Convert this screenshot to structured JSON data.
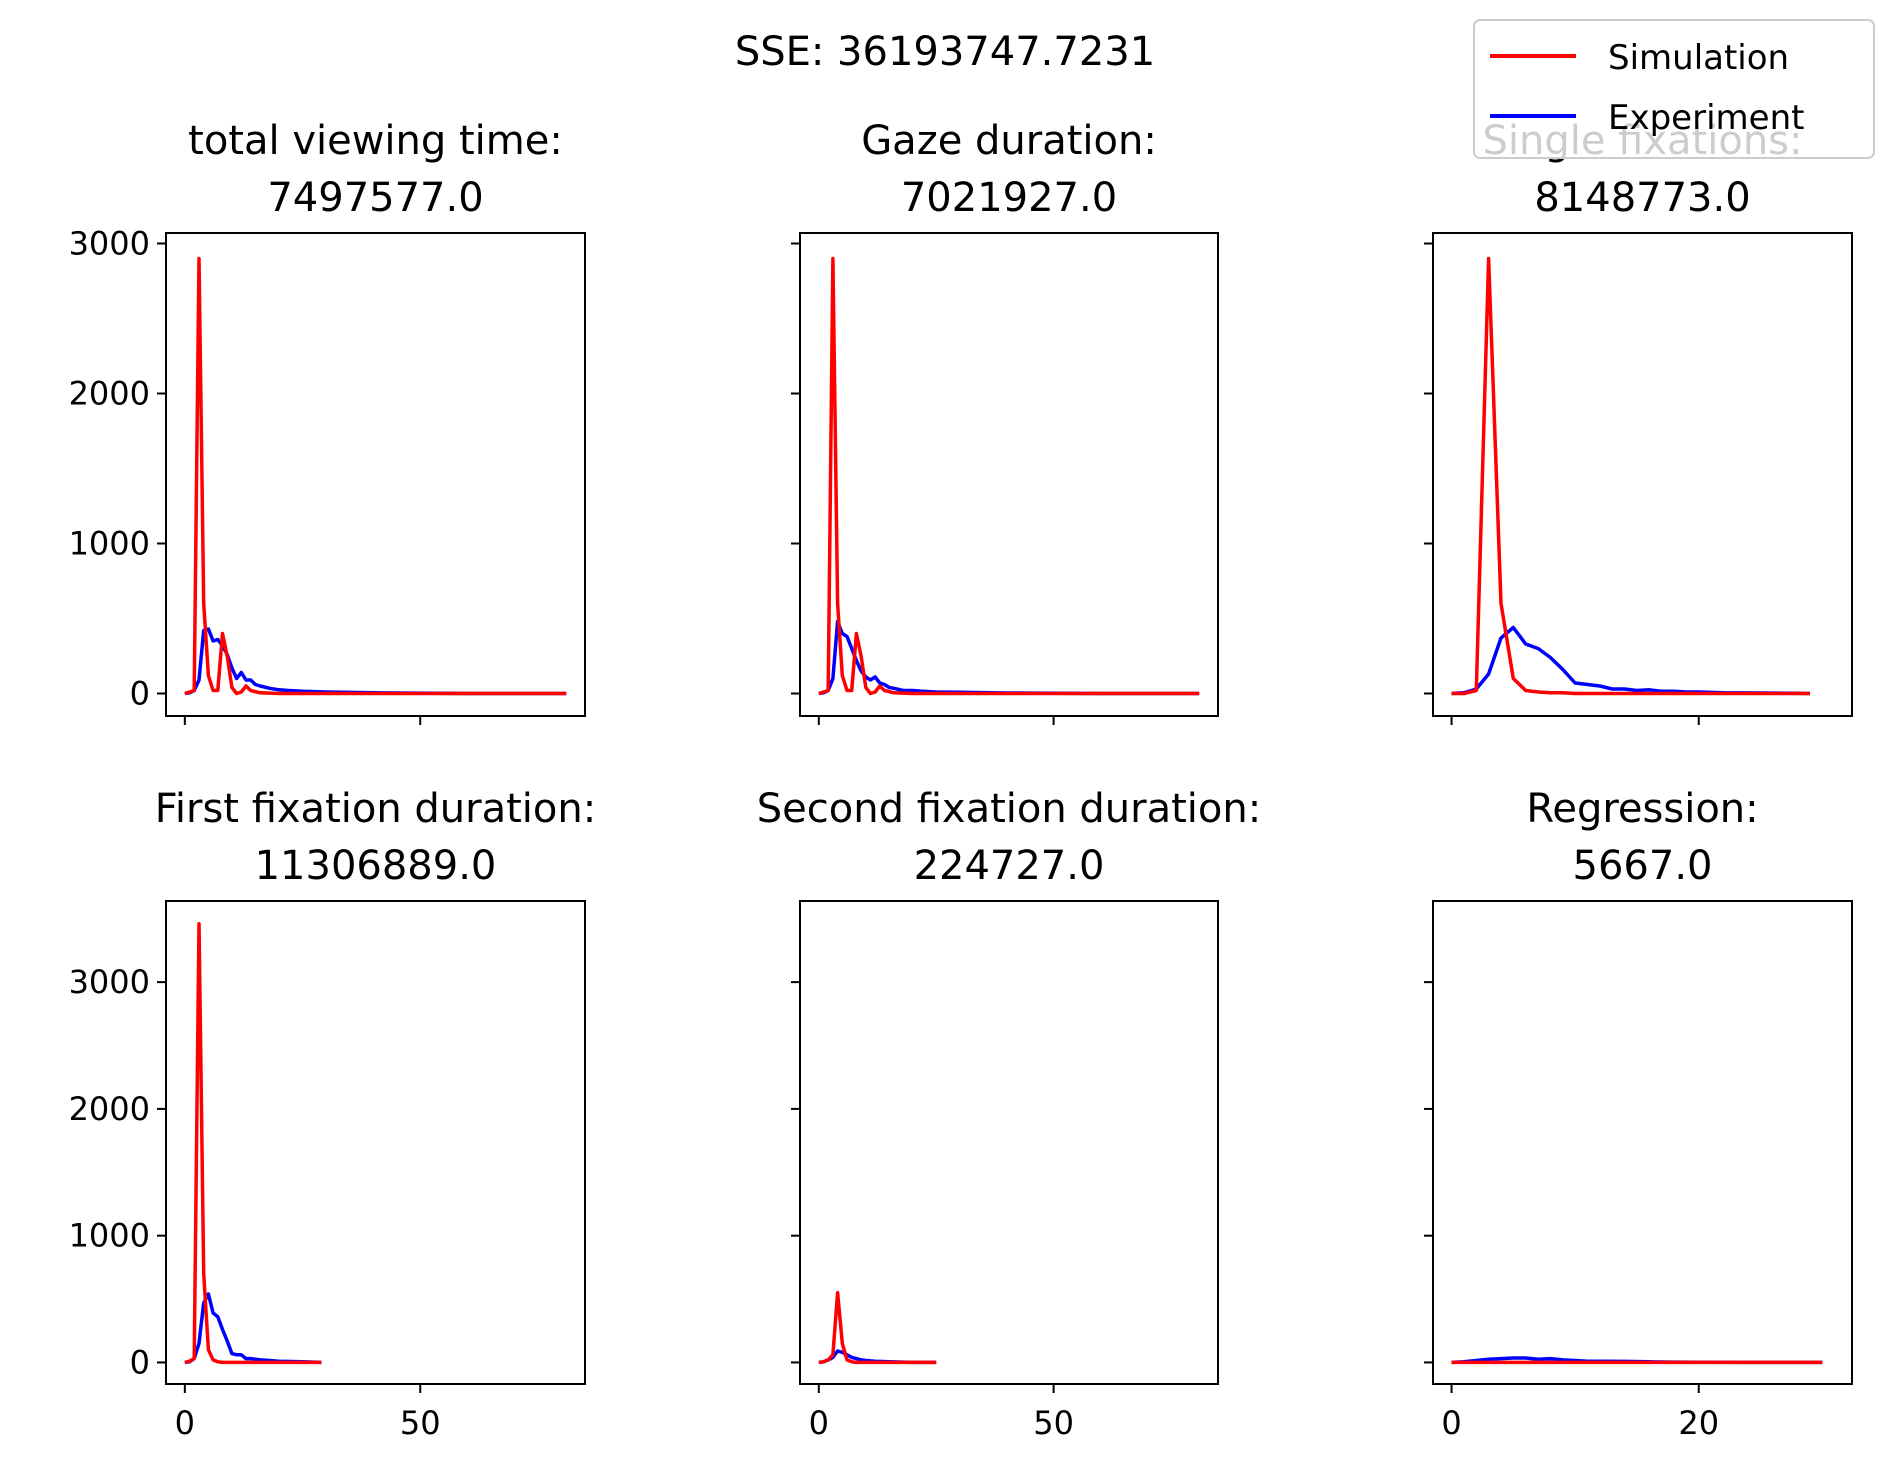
{
  "suptitle": "SSE: 36193747.7231",
  "legend": {
    "placement": "top-right",
    "entries": [
      {
        "label": "Simulation",
        "color": "#ff0000"
      },
      {
        "label": "Experiment",
        "color": "#0000ff"
      }
    ]
  },
  "colors": {
    "simulation": "#ff0000",
    "experiment": "#0000ff"
  },
  "chart_data": [
    {
      "type": "line",
      "title_line1": "total viewing time:",
      "title_line2": "7497577.0",
      "xlim": [
        -4,
        85
      ],
      "ylim": [
        -150,
        3070
      ],
      "xticks": [
        0,
        50
      ],
      "yticks": [
        0,
        1000,
        2000,
        3000
      ],
      "show_xticklabels": false,
      "show_yticklabels": true,
      "series": [
        {
          "name": "Simulation",
          "color": "#ff0000",
          "x": [
            0,
            1,
            2,
            3,
            4,
            5,
            6,
            7,
            8,
            9,
            10,
            11,
            12,
            13,
            14,
            16,
            20,
            30,
            50,
            81
          ],
          "y": [
            0,
            10,
            20,
            2900,
            600,
            120,
            20,
            20,
            400,
            250,
            40,
            0,
            10,
            50,
            20,
            5,
            0,
            0,
            0,
            0
          ]
        },
        {
          "name": "Experiment",
          "color": "#0000ff",
          "x": [
            0,
            1,
            2,
            3,
            4,
            5,
            6,
            7,
            8,
            9,
            10,
            11,
            12,
            13,
            14,
            15,
            16,
            18,
            20,
            22,
            25,
            30,
            40,
            60,
            81
          ],
          "y": [
            0,
            5,
            20,
            90,
            420,
            430,
            350,
            360,
            320,
            260,
            170,
            100,
            140,
            90,
            90,
            60,
            50,
            35,
            25,
            20,
            15,
            10,
            5,
            0,
            0
          ]
        }
      ]
    },
    {
      "type": "line",
      "title_line1": "Gaze duration:",
      "title_line2": "7021927.0",
      "xlim": [
        -4,
        85
      ],
      "ylim": [
        -150,
        3070
      ],
      "xticks": [
        0,
        50
      ],
      "yticks": [
        0,
        1000,
        2000,
        3000
      ],
      "show_xticklabels": false,
      "show_yticklabels": false,
      "series": [
        {
          "name": "Simulation",
          "color": "#ff0000",
          "x": [
            0,
            1,
            2,
            3,
            4,
            5,
            6,
            7,
            8,
            9,
            10,
            11,
            12,
            13,
            14,
            16,
            20,
            30,
            50,
            81
          ],
          "y": [
            0,
            10,
            20,
            2900,
            600,
            120,
            20,
            20,
            400,
            250,
            40,
            0,
            10,
            50,
            20,
            5,
            0,
            0,
            0,
            0
          ]
        },
        {
          "name": "Experiment",
          "color": "#0000ff",
          "x": [
            0,
            1,
            2,
            3,
            4,
            5,
            6,
            7,
            8,
            9,
            10,
            11,
            12,
            13,
            14,
            15,
            16,
            18,
            20,
            22,
            25,
            30,
            40,
            60,
            81
          ],
          "y": [
            0,
            5,
            20,
            100,
            480,
            400,
            380,
            300,
            220,
            150,
            110,
            90,
            110,
            70,
            60,
            40,
            35,
            20,
            20,
            15,
            10,
            8,
            3,
            0,
            0
          ]
        }
      ]
    },
    {
      "type": "line",
      "title_line1": "Single fixations:",
      "title_line2": "8148773.0",
      "xlim": [
        -1.5,
        32.4
      ],
      "ylim": [
        -150,
        3070
      ],
      "xticks": [
        0,
        20
      ],
      "yticks": [
        0,
        1000,
        2000,
        3000
      ],
      "show_xticklabels": false,
      "show_yticklabels": false,
      "series": [
        {
          "name": "Simulation",
          "color": "#ff0000",
          "x": [
            0,
            1,
            2,
            3,
            4,
            5,
            6,
            7,
            8,
            9,
            10,
            15,
            20,
            25,
            29
          ],
          "y": [
            0,
            0,
            20,
            2900,
            600,
            100,
            20,
            10,
            5,
            5,
            0,
            0,
            0,
            0,
            0
          ]
        },
        {
          "name": "Experiment",
          "color": "#0000ff",
          "x": [
            0,
            1,
            2,
            3,
            4,
            5,
            6,
            7,
            8,
            9,
            10,
            11,
            12,
            13,
            14,
            15,
            16,
            17,
            18,
            19,
            20,
            22,
            25,
            29
          ],
          "y": [
            0,
            5,
            30,
            130,
            370,
            440,
            330,
            300,
            240,
            160,
            70,
            60,
            50,
            30,
            30,
            20,
            25,
            15,
            15,
            10,
            10,
            5,
            3,
            0
          ]
        }
      ]
    },
    {
      "type": "line",
      "title_line1": "First fixation duration:",
      "title_line2": "11306889.0",
      "xlim": [
        -4,
        85
      ],
      "ylim": [
        -170,
        3640
      ],
      "xticks": [
        0,
        50
      ],
      "yticks": [
        0,
        1000,
        2000,
        3000
      ],
      "show_xticklabels": true,
      "show_yticklabels": true,
      "series": [
        {
          "name": "Simulation",
          "color": "#ff0000",
          "x": [
            0,
            1,
            2,
            3,
            4,
            5,
            6,
            7,
            8,
            10,
            15,
            20,
            29
          ],
          "y": [
            0,
            10,
            30,
            3460,
            700,
            100,
            20,
            5,
            0,
            0,
            0,
            0,
            0
          ]
        },
        {
          "name": "Experiment",
          "color": "#0000ff",
          "x": [
            0,
            1,
            2,
            3,
            4,
            5,
            6,
            7,
            8,
            9,
            10,
            11,
            12,
            13,
            14,
            16,
            18,
            20,
            25,
            29
          ],
          "y": [
            0,
            5,
            30,
            150,
            470,
            540,
            390,
            360,
            260,
            170,
            70,
            60,
            60,
            30,
            30,
            20,
            15,
            10,
            5,
            0
          ]
        }
      ]
    },
    {
      "type": "line",
      "title_line1": "Second fixation duration:",
      "title_line2": "224727.0",
      "xlim": [
        -4,
        85
      ],
      "ylim": [
        -170,
        3640
      ],
      "xticks": [
        0,
        50
      ],
      "yticks": [
        0,
        1000,
        2000,
        3000
      ],
      "show_xticklabels": true,
      "show_yticklabels": false,
      "series": [
        {
          "name": "Simulation",
          "color": "#ff0000",
          "x": [
            0,
            1,
            2,
            3,
            4,
            5,
            6,
            7,
            8,
            10,
            15,
            20,
            25
          ],
          "y": [
            0,
            5,
            20,
            60,
            550,
            150,
            20,
            5,
            0,
            0,
            0,
            0,
            0
          ]
        },
        {
          "name": "Experiment",
          "color": "#0000ff",
          "x": [
            0,
            1,
            2,
            3,
            4,
            5,
            6,
            7,
            8,
            9,
            10,
            12,
            15,
            20,
            25
          ],
          "y": [
            0,
            5,
            20,
            40,
            90,
            80,
            60,
            40,
            30,
            20,
            15,
            10,
            5,
            0,
            0
          ]
        }
      ]
    },
    {
      "type": "line",
      "title_line1": "Regression:",
      "title_line2": "5667.0",
      "xlim": [
        -1.5,
        32.4
      ],
      "ylim": [
        -170,
        3640
      ],
      "xticks": [
        0,
        20
      ],
      "yticks": [
        0,
        1000,
        2000,
        3000
      ],
      "show_xticklabels": true,
      "show_yticklabels": false,
      "series": [
        {
          "name": "Simulation",
          "color": "#ff0000",
          "x": [
            0,
            5,
            10,
            15,
            20,
            25,
            30
          ],
          "y": [
            0,
            0,
            0,
            0,
            0,
            0,
            0
          ]
        },
        {
          "name": "Experiment",
          "color": "#0000ff",
          "x": [
            0,
            1,
            2,
            3,
            4,
            5,
            6,
            7,
            8,
            9,
            10,
            11,
            12,
            14,
            16,
            18,
            20,
            25,
            30
          ],
          "y": [
            0,
            5,
            15,
            25,
            30,
            35,
            35,
            25,
            30,
            20,
            15,
            10,
            10,
            8,
            5,
            3,
            2,
            0,
            0
          ]
        }
      ]
    }
  ]
}
